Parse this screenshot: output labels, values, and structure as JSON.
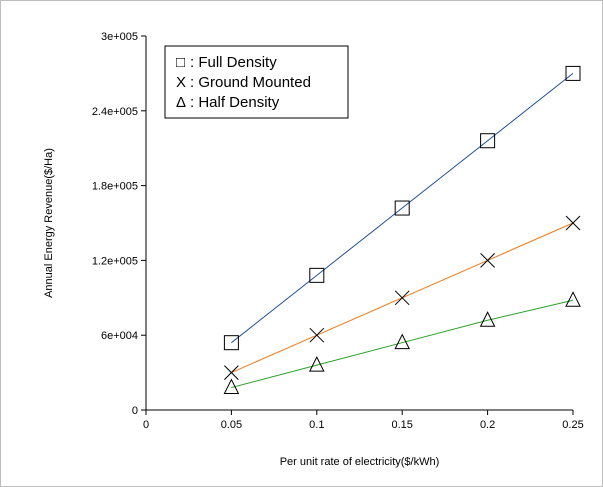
{
  "chart_data": {
    "type": "line",
    "title": "",
    "xlabel": "Per unit rate of electricity($/kWh)",
    "ylabel": "Annual Energy Revenue($/Ha)",
    "xlim": [
      0,
      0.25
    ],
    "ylim": [
      0,
      300000
    ],
    "x_ticks": [
      {
        "value": 0,
        "label": "0"
      },
      {
        "value": 0.05,
        "label": "0.05"
      },
      {
        "value": 0.1,
        "label": "0.1"
      },
      {
        "value": 0.15,
        "label": "0.15"
      },
      {
        "value": 0.2,
        "label": "0.2"
      },
      {
        "value": 0.25,
        "label": "0.25"
      }
    ],
    "y_ticks": [
      {
        "value": 0,
        "label": "0"
      },
      {
        "value": 60000,
        "label": "6e+004"
      },
      {
        "value": 120000,
        "label": "1.2e+005"
      },
      {
        "value": 180000,
        "label": "1.8e+005"
      },
      {
        "value": 240000,
        "label": "2.4e+005"
      },
      {
        "value": 300000,
        "label": "3e+005"
      }
    ],
    "grid": false,
    "legend_position": "top-left",
    "x": [
      0.05,
      0.1,
      0.15,
      0.2,
      0.25
    ],
    "series": [
      {
        "marker": "square",
        "color": "#1f4e9a",
        "legend_symbol": "□",
        "legend_label": ": Full Density",
        "values": [
          54000,
          108000,
          162000,
          216000,
          270000
        ]
      },
      {
        "marker": "x",
        "color": "#f07818",
        "legend_symbol": "X",
        "legend_label": ": Ground Mounted",
        "values": [
          30000,
          60000,
          90000,
          120000,
          150000
        ]
      },
      {
        "marker": "triangle",
        "color": "#2aa02a",
        "legend_symbol": "Δ",
        "legend_label": ": Half Density",
        "values": [
          18000,
          36000,
          54000,
          72000,
          88000
        ]
      }
    ]
  }
}
